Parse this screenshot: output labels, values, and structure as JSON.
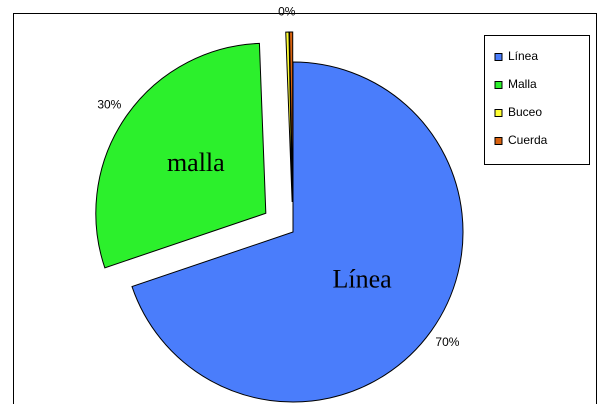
{
  "chart_data": {
    "type": "pie",
    "categories": [
      "Línea",
      "Malla",
      "Buceo",
      "Cuerda"
    ],
    "values": [
      69.8,
      29.6,
      0.3,
      0.3
    ],
    "value_labels": [
      "70%",
      "30%",
      "0%",
      null
    ],
    "slice_labels": [
      "Línea",
      "malla",
      null,
      null
    ],
    "colors": [
      "#4a7dfb",
      "#2cf02c",
      "#ffff33",
      "#d9620f"
    ],
    "legend": "top-right"
  }
}
